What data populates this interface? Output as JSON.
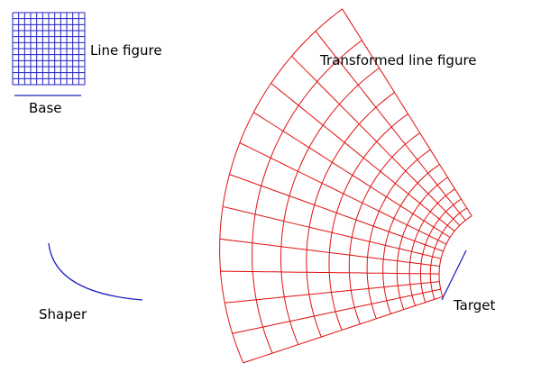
{
  "labels": {
    "line_figure": "Line figure",
    "base": "Base",
    "transformed": "Transformed line figure",
    "shaper": "Shaper",
    "target": "Target"
  }
}
